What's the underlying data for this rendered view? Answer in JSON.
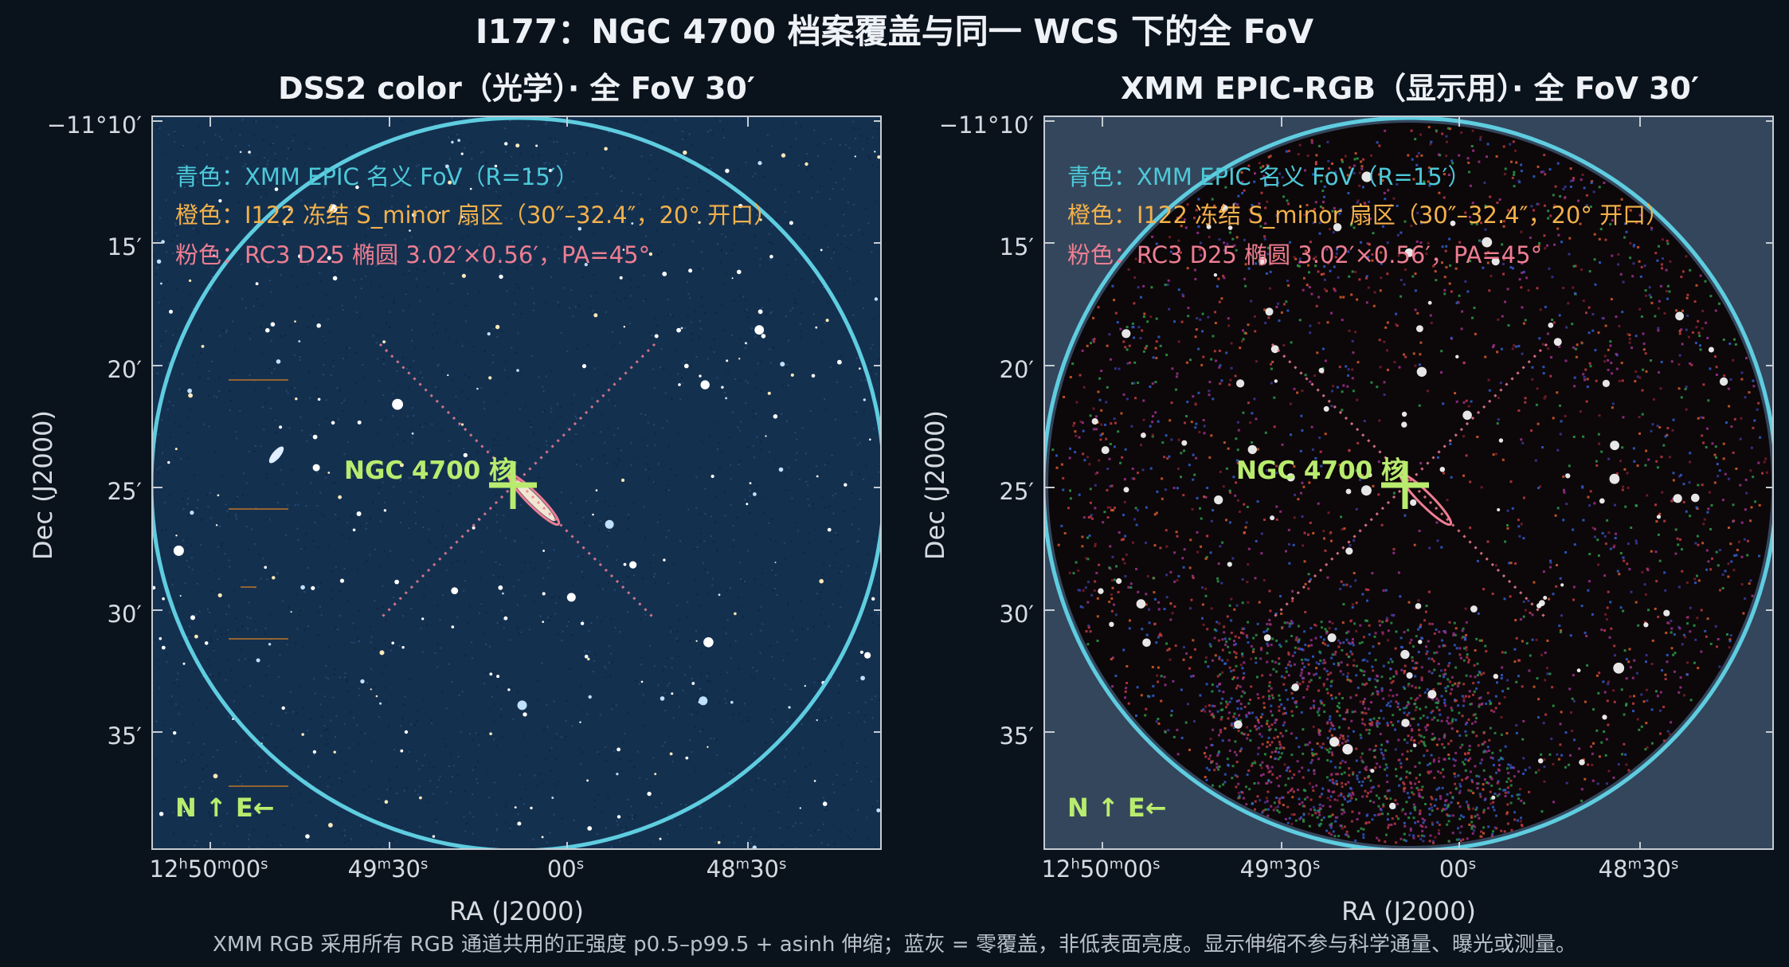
{
  "title": "I177：NGC 4700 档案覆盖与同一 WCS 下的全 FoV",
  "panels": {
    "left": {
      "title": "DSS2 color（光学）· 全 FoV 30′"
    },
    "right": {
      "title": "XMM EPIC-RGB（显示用）· 全 FoV 30′"
    }
  },
  "legend": {
    "cyan": "青色：XMM EPIC 名义 FoV（R=15′）",
    "orange": "橙色：I122 冻结 S_minor 扇区（30″–32.4″，20° 开口）",
    "pink": "粉色：RC3 D25 椭圆 3.02′×0.56′，PA=45°"
  },
  "target_label": "NGC 4700 核",
  "compass": "N ↑   E←",
  "axes": {
    "x_label": "RA (J2000)",
    "y_label": "Dec (J2000)",
    "dec_ticks": [
      "−11°10′",
      "15′",
      "20′",
      "25′",
      "30′",
      "35′"
    ],
    "ra_ticks": [
      {
        "main": "12",
        "parts": [
          [
            "h",
            "50"
          ],
          [
            "m",
            "00"
          ],
          [
            "s",
            ""
          ]
        ]
      },
      {
        "main": "",
        "parts": [
          [
            "",
            "49"
          ],
          [
            "m",
            "30"
          ],
          [
            "s",
            ""
          ]
        ]
      },
      {
        "main": "",
        "parts": [
          [
            "",
            "00"
          ],
          [
            "s",
            ""
          ]
        ]
      },
      {
        "main": "",
        "parts": [
          [
            "",
            "48"
          ],
          [
            "m",
            "30"
          ],
          [
            "s",
            ""
          ]
        ]
      }
    ],
    "ra_tick_text": [
      "12h50m00s",
      "49m30s",
      "00s",
      "48m30s"
    ]
  },
  "footnote": "XMM RGB 采用所有 RGB 通道共用的正强度 p0.5–p99.5 + asinh 伸缩；蓝灰 = 零覆盖，非低表面亮度。显示伸缩不参与科学通量、曝光或测量。",
  "colors": {
    "fov_circle": "#5fcde0",
    "sector": "#f2b14a",
    "ellipse": "#ee7e92",
    "marker": "#b9ec6e",
    "optical_bg": "#14304f",
    "zero_coverage": "#34465c"
  }
}
